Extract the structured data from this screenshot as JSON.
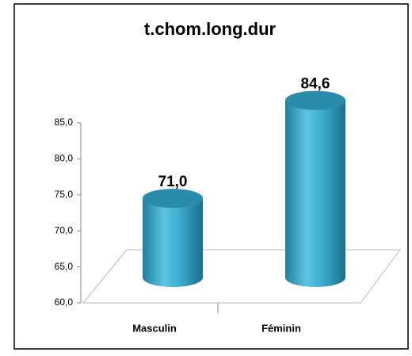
{
  "chart_data": {
    "type": "bar",
    "title": "t.chom.long.dur",
    "categories": [
      "Masculin",
      "Féminin"
    ],
    "values": [
      71.0,
      84.6
    ],
    "value_labels": [
      "71,0",
      "84,6"
    ],
    "color": "#3aa8c8",
    "ylim": [
      60,
      85
    ],
    "yticks": [
      {
        "value": 60,
        "label": "60,0"
      },
      {
        "value": 65,
        "label": "65,0"
      },
      {
        "value": 70,
        "label": "70,0"
      },
      {
        "value": 75,
        "label": "75,0"
      },
      {
        "value": 80,
        "label": "80,0"
      },
      {
        "value": 85,
        "label": "85,0"
      }
    ]
  }
}
